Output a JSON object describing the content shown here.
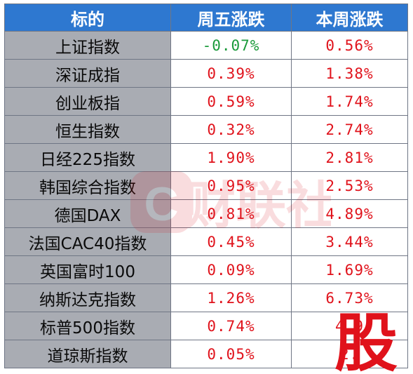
{
  "header": {
    "col1": "标的",
    "col2": "周五涨跌",
    "col3": "本周涨跌"
  },
  "rows": [
    {
      "name": "上证指数",
      "fri": "-0.07%",
      "week": "0.56%",
      "fri_dir": "down",
      "week_dir": "up"
    },
    {
      "name": "深证成指",
      "fri": "0.39%",
      "week": "1.38%",
      "fri_dir": "up",
      "week_dir": "up"
    },
    {
      "name": "创业板指",
      "fri": "0.59%",
      "week": "1.74%",
      "fri_dir": "up",
      "week_dir": "up"
    },
    {
      "name": "恒生指数",
      "fri": "0.32%",
      "week": "2.74%",
      "fri_dir": "up",
      "week_dir": "up"
    },
    {
      "name": "日经225指数",
      "fri": "1.90%",
      "week": "2.81%",
      "fri_dir": "up",
      "week_dir": "up"
    },
    {
      "name": "韩国综合指数",
      "fri": "0.95%",
      "week": "2.53%",
      "fri_dir": "up",
      "week_dir": "up"
    },
    {
      "name": "德国DAX",
      "fri": "0.81%",
      "week": "4.89%",
      "fri_dir": "up",
      "week_dir": "up"
    },
    {
      "name": "法国CAC40指数",
      "fri": "0.45%",
      "week": "3.44%",
      "fri_dir": "up",
      "week_dir": "up"
    },
    {
      "name": "英国富时100",
      "fri": "0.09%",
      "week": "1.69%",
      "fri_dir": "up",
      "week_dir": "up"
    },
    {
      "name": "纳斯达克指数",
      "fri": "1.26%",
      "week": "6.73%",
      "fri_dir": "up",
      "week_dir": "up"
    },
    {
      "name": "标普500指数",
      "fri": "0.74%",
      "week": "4.9",
      "fri_dir": "up",
      "week_dir": "up"
    },
    {
      "name": "道琼斯指数",
      "fri": "0.05%",
      "week": "2.",
      "fri_dir": "up",
      "week_dir": "up"
    }
  ],
  "colors": {
    "header_bg": "#2e78d0",
    "name_bg": "#a9acb3",
    "up": "#e0121b",
    "down": "#1a9a3a",
    "stamp": "#e0121b"
  },
  "watermark": {
    "icon": "cls-logo-icon",
    "text": "财联社"
  },
  "stamp": {
    "text": "股"
  }
}
